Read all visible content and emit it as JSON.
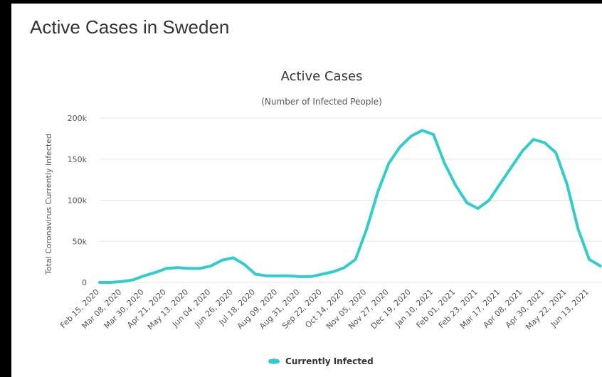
{
  "page": {
    "title": "Active Cases in Sweden"
  },
  "colors": {
    "series": "#33cccc",
    "grid": "#e6e6e6",
    "background": "#ffffff"
  },
  "chart_data": {
    "type": "line",
    "title": "Active Cases",
    "subtitle": "(Number of Infected People)",
    "xlabel": "",
    "ylabel": "Total Coronavirus Currently Infected",
    "ylim": [
      0,
      200000
    ],
    "y_ticks": [
      0,
      50000,
      100000,
      150000,
      200000
    ],
    "y_tick_labels": [
      "0",
      "50k",
      "100k",
      "150k",
      "200k"
    ],
    "x_tick_labels": [
      "Feb 15, 2020",
      "Mar 08, 2020",
      "Mar 30, 2020",
      "Apr 21, 2020",
      "May 13, 2020",
      "Jun 04, 2020",
      "Jun 26, 2020",
      "Jul 18, 2020",
      "Aug 09, 2020",
      "Aug 31, 2020",
      "Sep 22, 2020",
      "Oct 14, 2020",
      "Nov 05, 2020",
      "Nov 27, 2020",
      "Dec 19, 2020",
      "Jan 10, 2021",
      "Feb 01, 2021",
      "Feb 23, 2021",
      "Mar 17, 2021",
      "Apr 08, 2021",
      "Apr 30, 2021",
      "May 22, 2021",
      "Jun 13, 2021"
    ],
    "grid": true,
    "legend": "bottom-center",
    "series": [
      {
        "name": "Currently Infected",
        "x": [
          "Feb 15, 2020",
          "Feb 26, 2020",
          "Mar 08, 2020",
          "Mar 19, 2020",
          "Mar 30, 2020",
          "Apr 10, 2020",
          "Apr 21, 2020",
          "May 02, 2020",
          "May 13, 2020",
          "May 24, 2020",
          "Jun 04, 2020",
          "Jun 15, 2020",
          "Jun 26, 2020",
          "Jul 07, 2020",
          "Jul 18, 2020",
          "Jul 29, 2020",
          "Aug 09, 2020",
          "Aug 20, 2020",
          "Aug 31, 2020",
          "Sep 11, 2020",
          "Sep 22, 2020",
          "Oct 03, 2020",
          "Oct 14, 2020",
          "Oct 25, 2020",
          "Nov 05, 2020",
          "Nov 16, 2020",
          "Nov 27, 2020",
          "Dec 08, 2020",
          "Dec 19, 2020",
          "Dec 30, 2020",
          "Jan 10, 2021",
          "Jan 21, 2021",
          "Feb 01, 2021",
          "Feb 12, 2021",
          "Feb 23, 2021",
          "Mar 06, 2021",
          "Mar 17, 2021",
          "Mar 28, 2021",
          "Apr 08, 2021",
          "Apr 19, 2021",
          "Apr 30, 2021",
          "May 11, 2021",
          "May 22, 2021",
          "Jun 02, 2021",
          "Jun 13, 2021",
          "Jun 24, 2021"
        ],
        "values": [
          0,
          0,
          1000,
          3000,
          8000,
          12000,
          17000,
          18000,
          17000,
          17000,
          20000,
          27000,
          30000,
          22000,
          10000,
          8000,
          8000,
          8000,
          7000,
          7000,
          10000,
          13000,
          18000,
          28000,
          65000,
          110000,
          145000,
          165000,
          178000,
          185000,
          180000,
          145000,
          118000,
          97000,
          90000,
          100000,
          120000,
          140000,
          160000,
          174000,
          170000,
          158000,
          120000,
          65000,
          28000,
          20000
        ]
      }
    ]
  }
}
